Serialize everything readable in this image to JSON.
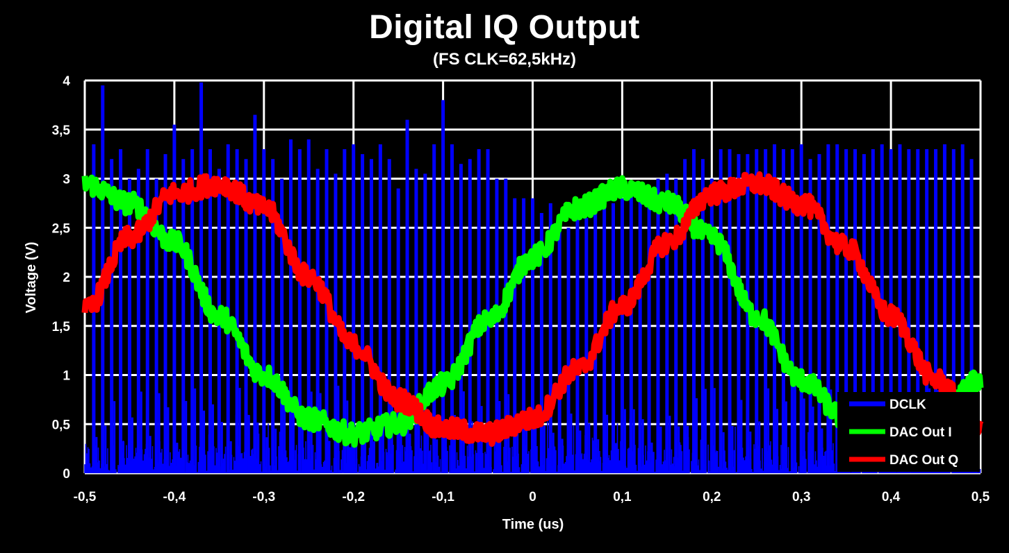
{
  "chart_data": {
    "type": "line",
    "title": "Digital IQ Output",
    "subtitle": "(FS CLK=62,5kHz)",
    "xlabel": "Time (us)",
    "ylabel": "Voltage (V)",
    "xlim": [
      -0.5,
      0.5
    ],
    "ylim": [
      0,
      4
    ],
    "xticks": [
      "-0,5",
      "-0,4",
      "-0,3",
      "-0,2",
      "-0,1",
      "0",
      "0,1",
      "0,2",
      "0,3",
      "0,4",
      "0,5"
    ],
    "yticks": [
      "0",
      "0,5",
      "1",
      "1,5",
      "2",
      "2,5",
      "3",
      "3,5",
      "4"
    ],
    "grid": true,
    "legend_position": "bottom-right",
    "colors": {
      "background": "#000000",
      "grid": "#ffffff",
      "DCLK": "#0000ff",
      "DAC Out I": "#00ff00",
      "DAC Out Q": "#ff0000"
    },
    "series": [
      {
        "name": "DCLK",
        "description_type": "clock pulse train",
        "pulse_times": [
          -0.49,
          -0.48,
          -0.47,
          -0.46,
          -0.45,
          -0.44,
          -0.43,
          -0.42,
          -0.41,
          -0.4,
          -0.39,
          -0.38,
          -0.37,
          -0.36,
          -0.35,
          -0.34,
          -0.33,
          -0.32,
          -0.31,
          -0.3,
          -0.29,
          -0.28,
          -0.27,
          -0.26,
          -0.25,
          -0.24,
          -0.23,
          -0.22,
          -0.21,
          -0.2,
          -0.19,
          -0.18,
          -0.17,
          -0.16,
          -0.15,
          -0.14,
          -0.13,
          -0.12,
          -0.11,
          -0.1,
          -0.09,
          -0.08,
          -0.07,
          -0.06,
          -0.05,
          -0.04,
          -0.03,
          -0.02,
          -0.01,
          0.0,
          0.01,
          0.02,
          0.03,
          0.04,
          0.05,
          0.06,
          0.07,
          0.08,
          0.09,
          0.1,
          0.11,
          0.12,
          0.13,
          0.14,
          0.15,
          0.16,
          0.17,
          0.18,
          0.19,
          0.2,
          0.21,
          0.22,
          0.23,
          0.24,
          0.25,
          0.26,
          0.27,
          0.28,
          0.29,
          0.3,
          0.31,
          0.32,
          0.33,
          0.34,
          0.35,
          0.36,
          0.37,
          0.38,
          0.39,
          0.4,
          0.41,
          0.42,
          0.43,
          0.44,
          0.45,
          0.46,
          0.47,
          0.48,
          0.49
        ],
        "pulse_peaks": [
          3.35,
          3.95,
          3.2,
          3.3,
          3.0,
          3.1,
          3.3,
          3.0,
          3.25,
          3.55,
          3.2,
          3.3,
          3.98,
          3.3,
          3.1,
          3.35,
          3.3,
          3.2,
          3.65,
          3.3,
          3.2,
          3.0,
          3.4,
          3.3,
          3.4,
          3.1,
          3.3,
          3.05,
          3.3,
          3.35,
          3.25,
          3.2,
          3.35,
          3.2,
          2.9,
          3.6,
          3.1,
          3.05,
          3.35,
          3.8,
          3.35,
          3.15,
          3.2,
          3.3,
          3.3,
          3.0,
          3.0,
          2.8,
          2.8,
          2.8,
          2.65,
          2.75,
          2.6,
          2.5,
          2.7,
          2.6,
          2.7,
          2.8,
          2.75,
          2.8,
          2.9,
          2.95,
          2.9,
          3.0,
          3.05,
          3.0,
          3.2,
          3.3,
          3.2,
          3.0,
          3.3,
          3.3,
          3.25,
          3.25,
          3.3,
          3.3,
          3.35,
          3.3,
          3.3,
          3.35,
          3.2,
          3.25,
          3.35,
          3.35,
          3.3,
          3.3,
          3.25,
          3.3,
          3.35,
          3.3,
          3.35,
          3.3,
          3.3,
          3.3,
          3.3,
          3.35,
          3.3,
          3.35,
          3.2
        ],
        "low_level_noise": [
          0,
          0.6
        ]
      },
      {
        "name": "DAC Out I",
        "x": [
          -0.5,
          -0.45,
          -0.4,
          -0.35,
          -0.3,
          -0.25,
          -0.2,
          -0.15,
          -0.1,
          -0.05,
          0.0,
          0.05,
          0.1,
          0.15,
          0.2,
          0.25,
          0.3,
          0.35,
          0.4,
          0.45,
          0.5
        ],
        "y": [
          2.95,
          2.75,
          2.35,
          1.6,
          1.0,
          0.55,
          0.4,
          0.5,
          0.9,
          1.55,
          2.2,
          2.7,
          2.9,
          2.75,
          2.4,
          1.6,
          0.95,
          0.55,
          0.4,
          0.55,
          0.95
        ]
      },
      {
        "name": "DAC Out Q",
        "x": [
          -0.5,
          -0.45,
          -0.4,
          -0.35,
          -0.3,
          -0.25,
          -0.2,
          -0.15,
          -0.1,
          -0.05,
          0.0,
          0.05,
          0.1,
          0.15,
          0.2,
          0.25,
          0.3,
          0.35,
          0.4,
          0.45,
          0.5
        ],
        "y": [
          1.65,
          2.4,
          2.85,
          2.95,
          2.7,
          2.0,
          1.3,
          0.75,
          0.45,
          0.4,
          0.55,
          1.05,
          1.7,
          2.35,
          2.85,
          2.95,
          2.75,
          2.3,
          1.6,
          0.95,
          0.45
        ]
      }
    ]
  }
}
